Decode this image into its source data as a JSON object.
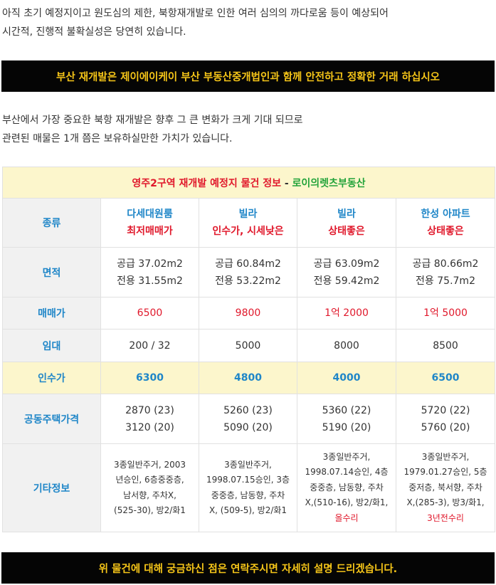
{
  "intro": {
    "line1": "아직 초기 예정지이고 원도심의 제한, 북항재개발로 인한 여러 심의의 까다로움 등이 예상되어",
    "line2": "시간적, 진행적 불확실성은 당연히 있습니다."
  },
  "banner_top": "부산 재개발은 제이에이케이 부산 부동산중개법인과 함께 안전하고 정확한 거래 하십시오",
  "para2": {
    "line1": "부산에서 가장 중요한 북항 재개발은 향후 그 큰 변화가 크게 기대 되므로",
    "line2": "관련된 매물은 1개 쯤은 보유하실만한 가치가 있습니다."
  },
  "table": {
    "title_main": "영주2구역 재개발 예정지 물건 정보",
    "title_sep": " - ",
    "title_agency": "로이의렛츠부동산",
    "row_labels": {
      "type": "종류",
      "area": "면적",
      "price": "매매가",
      "lease": "임대",
      "acquisition": "인수가",
      "public_price": "공동주택가격",
      "etc": "기타정보"
    },
    "columns": [
      {
        "type": "다세대원룸",
        "type_note": "최저매매가",
        "supply": "공급 37.02m2",
        "exclusive": "전용 31.55m2",
        "price": "6500",
        "lease": "200 / 32",
        "acquisition": "6300",
        "public_price_1": "2870 (23)",
        "public_price_2": "3120 (20)",
        "etc_lines": [
          "3종일반주거, 2003",
          "년승인, 6층중중층,",
          "남서향, 주차X,",
          "(525-30), 방2/화1"
        ],
        "etc_red": ""
      },
      {
        "type": "빌라",
        "type_note": "인수가, 시세낮은",
        "supply": "공급 60.84m2",
        "exclusive": "전용 53.22m2",
        "price": "9800",
        "lease": "5000",
        "acquisition": "4800",
        "public_price_1": "5260 (23)",
        "public_price_2": "5090 (20)",
        "etc_lines": [
          "3종일반주거,",
          "1998.07.15승인, 3층",
          "중중층, 남동향, 주차",
          "X, (509-5), 방2/화1"
        ],
        "etc_red": ""
      },
      {
        "type": "빌라",
        "type_note": "상태좋은",
        "supply": "공급 63.09m2",
        "exclusive": "전용 59.42m2",
        "price": "1억 2000",
        "lease": "8000",
        "acquisition": "4000",
        "public_price_1": "5360 (22)",
        "public_price_2": "5190 (20)",
        "etc_lines": [
          "3종일반주거,",
          "1998.07.14승인, 4층",
          "중중층, 남동향, 주차",
          "X,(510-16), 방2/화1,"
        ],
        "etc_red": "올수리"
      },
      {
        "type": "한성 아파트",
        "type_note": "상태좋은",
        "supply": "공급 80.66m2",
        "exclusive": "전용 75.7m2",
        "price": "1억 5000",
        "lease": "8500",
        "acquisition": "6500",
        "public_price_1": "5720 (22)",
        "public_price_2": "5760 (20)",
        "etc_lines": [
          "3종일반주거,",
          "1979.01.27승인, 5층",
          "중저층, 북서향, 주차",
          "X,(285-3), 방3/화1,"
        ],
        "etc_red": "3년전수리"
      }
    ]
  },
  "banner_bottom": "위 물건에 대해 궁금하신 점은 연락주시면 자세히 설명 드리겠습니다.",
  "colors": {
    "banner_bg": "#050505",
    "banner_text": "#f5c518",
    "highlight_row": "#fcf6cc",
    "label_blue": "#1f86c8",
    "accent_red": "#e0182b",
    "accent_green": "#22a33a"
  }
}
